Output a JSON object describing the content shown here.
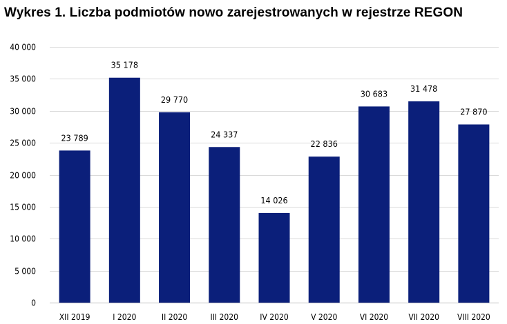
{
  "chart_data": {
    "type": "bar",
    "title": "Wykres 1. Liczba podmiotów nowo zarejestrowanych  w rejestrze REGON",
    "xlabel": "",
    "ylabel": "",
    "categories": [
      "XII 2019",
      "I 2020",
      "II 2020",
      "III 2020",
      "IV 2020",
      "V 2020",
      "VI 2020",
      "VII 2020",
      "VIII 2020"
    ],
    "values": [
      23789,
      35178,
      29770,
      24337,
      14026,
      22836,
      30683,
      31478,
      27870
    ],
    "value_labels": [
      "23 789",
      "35 178",
      "29 770",
      "24 337",
      "14 026",
      "22 836",
      "30 683",
      "31 478",
      "27 870"
    ],
    "ylim": [
      0,
      40000
    ],
    "yticks": [
      0,
      5000,
      10000,
      15000,
      20000,
      25000,
      30000,
      35000,
      40000
    ],
    "ytick_labels": [
      "0",
      "5 000",
      "10 000",
      "15 000",
      "20 000",
      "25 000",
      "30 000",
      "35 000",
      "40 000"
    ],
    "bar_color": "#0b1f7a",
    "grid": true,
    "legend": "none"
  }
}
